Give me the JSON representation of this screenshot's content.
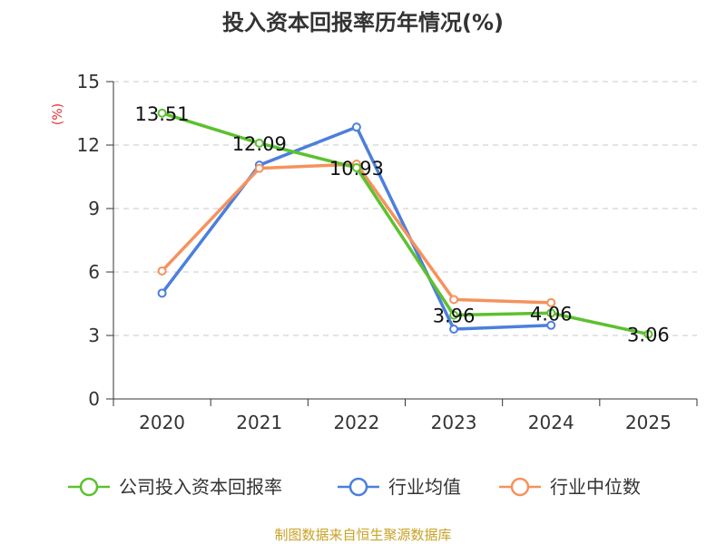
{
  "chart_data": {
    "type": "line",
    "title": "投入资本回报率历年情况(%)",
    "ylabel": "(%)",
    "xlabel": "",
    "categories": [
      "2020",
      "2021",
      "2022",
      "2023",
      "2024",
      "2025"
    ],
    "ylim": [
      0,
      15
    ],
    "yticks": [
      0,
      3,
      6,
      9,
      12,
      15
    ],
    "grid": true,
    "legend_position": "bottom",
    "series": [
      {
        "name": "公司投入资本回报率",
        "color": "#5cc12f",
        "values": [
          13.51,
          12.09,
          10.93,
          3.96,
          4.06,
          3.06
        ],
        "labels": [
          "13.51",
          "12.09",
          "10.93",
          "3.96",
          "4.06",
          "3.06"
        ]
      },
      {
        "name": "行业均值",
        "color": "#4c7fdc",
        "values": [
          5.0,
          11.05,
          12.85,
          3.3,
          3.48,
          null
        ],
        "labels": null
      },
      {
        "name": "行业中位数",
        "color": "#f5925e",
        "values": [
          6.05,
          10.9,
          11.1,
          4.7,
          4.55,
          null
        ],
        "labels": null
      }
    ],
    "source": "制图数据来自恒生聚源数据库"
  }
}
